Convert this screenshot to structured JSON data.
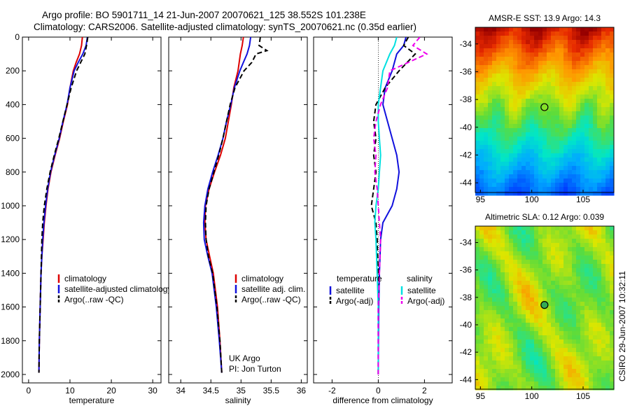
{
  "header": {
    "line1": "Argo profile: BO 5901711_14 21-Jun-2007 20070621_125 38.552S 101.238E",
    "line2": "Climatology: CARS2006. Satellite-adjusted climatology: synTS_20070621.nc (0.35d earlier)"
  },
  "side_label": "CSIRO 29-Jun-2007 10:32:11",
  "colors": {
    "red": "#dd0000",
    "blue": "#1111dd",
    "black": "#000000",
    "cyan": "#00e0e0",
    "magenta": "#ee00ee"
  },
  "chart_data": [
    {
      "type": "line",
      "xlabel": "temperature",
      "xlim": [
        -1.5,
        32
      ],
      "xticks": [
        "0",
        "10",
        "20",
        "30"
      ],
      "ylim": [
        2050,
        0
      ],
      "yticks": [
        "0",
        "200",
        "400",
        "600",
        "800",
        "1000",
        "1200",
        "1400",
        "1600",
        "1800",
        "2000"
      ],
      "legend": [
        "climatology",
        "satellite-adjusted climatology",
        "Argo(..raw -QC)"
      ],
      "series": [
        {
          "name": "climatology",
          "color": "red",
          "dash": false,
          "depth": [
            0,
            50,
            100,
            150,
            200,
            300,
            400,
            500,
            600,
            700,
            800,
            900,
            1000,
            1100,
            1200,
            1300,
            1400,
            1600,
            1800,
            1990
          ],
          "values": [
            13.0,
            12.8,
            12.3,
            11.5,
            10.8,
            10.0,
            9.4,
            8.4,
            7.5,
            6.4,
            5.4,
            4.7,
            4.2,
            3.8,
            3.5,
            3.2,
            3.0,
            2.8,
            2.6,
            2.5
          ]
        },
        {
          "name": "satellite-adjusted climatology",
          "color": "blue",
          "dash": false,
          "depth": [
            0,
            50,
            100,
            150,
            200,
            300,
            400,
            500,
            600,
            700,
            800,
            900,
            1000,
            1100,
            1200,
            1300,
            1400,
            1600,
            1800,
            1990
          ],
          "values": [
            14.2,
            13.9,
            13.1,
            12.0,
            11.0,
            10.0,
            9.3,
            8.3,
            7.4,
            6.3,
            5.3,
            4.6,
            4.1,
            3.7,
            3.4,
            3.2,
            3.0,
            2.8,
            2.6,
            2.5
          ]
        },
        {
          "name": "Argo(..raw -QC)",
          "color": "black",
          "dash": true,
          "depth": [
            0,
            50,
            100,
            150,
            200,
            300,
            400,
            500,
            600,
            700,
            800,
            900,
            1000,
            1100,
            1200,
            1300,
            1400,
            1600,
            1800,
            1990
          ],
          "values": [
            14.3,
            14.0,
            13.6,
            12.6,
            11.6,
            10.3,
            9.3,
            8.3,
            7.3,
            6.2,
            5.2,
            4.4,
            3.8,
            3.4,
            3.2,
            3.1,
            3.0,
            2.8,
            2.6,
            2.5
          ]
        }
      ]
    },
    {
      "type": "line",
      "xlabel": "salinity",
      "xlim": [
        33.8,
        36.1
      ],
      "xticks": [
        "34",
        "34.5",
        "35",
        "35.5",
        "36"
      ],
      "ylim": [
        2050,
        0
      ],
      "legend": [
        "climatology",
        "satellite adj. clim.",
        "Argo(..raw -QC)"
      ],
      "annotation": [
        "UK Argo",
        "PI: Jon Turton"
      ],
      "series": [
        {
          "name": "climatology",
          "color": "red",
          "dash": false,
          "depth": [
            0,
            50,
            100,
            150,
            200,
            300,
            400,
            500,
            600,
            700,
            800,
            900,
            1000,
            1100,
            1200,
            1300,
            1400,
            1600,
            1800,
            1990
          ],
          "values": [
            35.04,
            35.02,
            34.99,
            34.97,
            34.95,
            34.88,
            34.84,
            34.79,
            34.74,
            34.66,
            34.56,
            34.47,
            34.41,
            34.4,
            34.42,
            34.48,
            34.54,
            34.61,
            34.65,
            34.68
          ]
        },
        {
          "name": "satellite adj. clim.",
          "color": "blue",
          "dash": false,
          "depth": [
            0,
            50,
            100,
            150,
            200,
            300,
            400,
            500,
            600,
            700,
            800,
            900,
            1000,
            1100,
            1200,
            1300,
            1400,
            1600,
            1800,
            1990
          ],
          "values": [
            35.16,
            35.14,
            35.1,
            35.04,
            34.98,
            34.89,
            34.83,
            34.76,
            34.7,
            34.62,
            34.53,
            34.45,
            34.4,
            34.38,
            34.39,
            34.45,
            34.52,
            34.59,
            34.64,
            34.68
          ]
        },
        {
          "name": "Argo(..raw -QC)",
          "color": "black",
          "dash": true,
          "depth": [
            0,
            50,
            80,
            100,
            150,
            200,
            300,
            400,
            500,
            600,
            700,
            800,
            900,
            1000,
            1100,
            1200,
            1300,
            1400,
            1600,
            1800,
            1990
          ],
          "values": [
            35.32,
            35.3,
            35.43,
            35.25,
            35.18,
            35.05,
            34.9,
            34.82,
            34.76,
            34.7,
            34.63,
            34.55,
            34.47,
            34.42,
            34.41,
            34.42,
            34.46,
            34.53,
            34.6,
            34.65,
            34.68
          ]
        }
      ]
    },
    {
      "type": "line",
      "xlabel": "difference from climatology",
      "xlim": [
        -2.8,
        3.2
      ],
      "xticks": [
        "-2",
        "0",
        "2"
      ],
      "ylim": [
        2050,
        0
      ],
      "legend": [
        "temperature",
        "satellite",
        "Argo(-adj)",
        "salinity",
        "satellite",
        "Argo(-adj)"
      ],
      "series": [
        {
          "name": "temperature satellite",
          "color": "blue",
          "dash": false,
          "depth": [
            0,
            50,
            100,
            200,
            300,
            400,
            500,
            600,
            700,
            800,
            900,
            1000,
            1100,
            1200,
            1400,
            1600,
            1800,
            2000
          ],
          "values": [
            1.2,
            1.1,
            0.8,
            0.6,
            0.3,
            0.2,
            0.4,
            0.6,
            0.8,
            0.9,
            0.8,
            0.6,
            0.2,
            0.1,
            0.05,
            0.02,
            0.01,
            0.0
          ]
        },
        {
          "name": "temperature Argo(-adj)",
          "color": "black",
          "dash": true,
          "depth": [
            0,
            50,
            100,
            200,
            300,
            400,
            500,
            600,
            700,
            800,
            900,
            1000,
            1100,
            1200,
            1400,
            1600,
            1800,
            2000
          ],
          "values": [
            1.3,
            1.1,
            1.6,
            0.9,
            0.3,
            -0.1,
            -0.2,
            -0.1,
            -0.2,
            -0.1,
            -0.2,
            -0.3,
            -0.1,
            -0.05,
            0.0,
            0.0,
            0.0,
            0.0
          ]
        },
        {
          "name": "salinity satellite",
          "color": "cyan",
          "dash": false,
          "depth": [
            0,
            50,
            100,
            200,
            300,
            400,
            500,
            600,
            700,
            800,
            900,
            1000,
            1100,
            1200,
            1400,
            1600,
            1800,
            2000
          ],
          "values": [
            0.8,
            0.7,
            0.5,
            0.2,
            0.1,
            0.0,
            0.0,
            0.05,
            0.1,
            0.05,
            0.0,
            -0.1,
            -0.15,
            -0.1,
            -0.05,
            0.0,
            0.0,
            0.0
          ]
        },
        {
          "name": "salinity Argo(-adj)",
          "color": "magenta",
          "dash": true,
          "depth": [
            0,
            50,
            100,
            200,
            300,
            400,
            500,
            600,
            700,
            800,
            900,
            1000,
            1100,
            1200,
            1400,
            1600,
            1800,
            2000
          ],
          "values": [
            1.8,
            1.5,
            2.1,
            0.5,
            0.4,
            0.1,
            -0.1,
            -0.2,
            -0.1,
            -0.15,
            -0.05,
            0.0,
            0.05,
            0.1,
            0.05,
            0.0,
            0.0,
            0.0
          ]
        }
      ]
    },
    {
      "type": "heatmap",
      "title": "AMSR-E SST: 13.9 Argo: 14.3",
      "xlim": [
        94.5,
        108
      ],
      "ylim": [
        -44.7,
        -32.8
      ],
      "xticks": [
        "95",
        "100",
        "105"
      ],
      "yticks": [
        "-34",
        "-36",
        "-38",
        "-40",
        "-42",
        "-44"
      ],
      "marker": {
        "lon": 101.238,
        "lat": -38.552
      }
    },
    {
      "type": "heatmap",
      "title": "Altimetric SLA: 0.12 Argo: 0.039",
      "xlim": [
        94.5,
        108
      ],
      "ylim": [
        -44.7,
        -32.8
      ],
      "xticks": [
        "95",
        "100",
        "105"
      ],
      "yticks": [
        "-34",
        "-36",
        "-38",
        "-40",
        "-42",
        "-44"
      ],
      "marker": {
        "lon": 101.238,
        "lat": -38.552
      }
    }
  ]
}
